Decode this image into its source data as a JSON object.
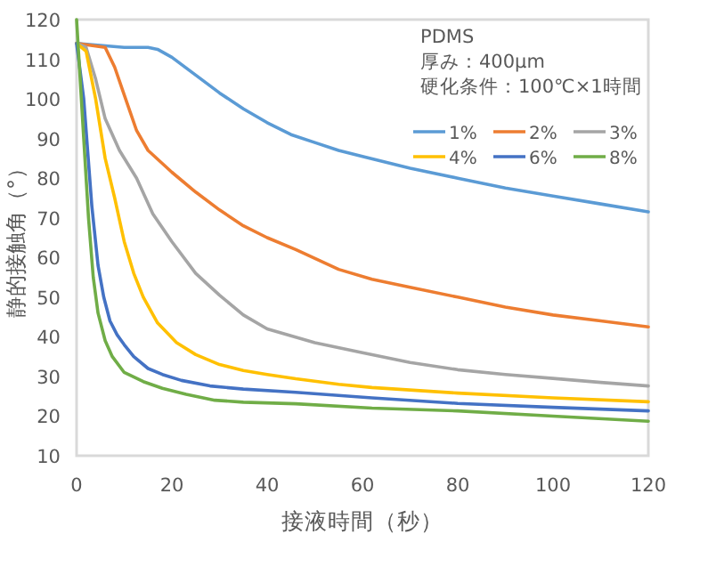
{
  "chart_data": {
    "type": "line",
    "xlabel": "接液時間（秒）",
    "ylabel": "静的接触角（°）",
    "annotations": [
      "PDMS",
      "厚み：400μm",
      "硬化条件：100℃×1時間"
    ],
    "xlim": [
      0,
      120
    ],
    "xticks": [
      0,
      20,
      40,
      60,
      80,
      100,
      120
    ],
    "ylim": [
      10,
      120
    ],
    "yticks": [
      10,
      20,
      30,
      40,
      50,
      60,
      70,
      80,
      90,
      100,
      110,
      120
    ],
    "legend": "top right",
    "grid": false,
    "marker": "none",
    "line_style": "solid",
    "series": [
      {
        "name": "1%",
        "color": "#5b9bd5",
        "x": [
          0,
          5,
          10,
          15,
          17,
          20,
          25,
          30,
          35,
          40,
          45,
          50,
          55,
          60,
          70,
          80,
          90,
          100,
          110,
          120
        ],
        "values": [
          114,
          113.5,
          113,
          113,
          112.5,
          110.5,
          106,
          101.5,
          97.5,
          94,
          91,
          89,
          87,
          85.5,
          82.5,
          80,
          77.5,
          75.5,
          73.5,
          71.5
        ]
      },
      {
        "name": "2%",
        "color": "#ed7d31",
        "x": [
          0,
          3,
          6,
          8,
          10,
          12.6,
          15,
          20,
          25,
          30,
          35,
          40,
          46,
          55,
          62,
          70,
          80,
          90,
          100,
          110,
          120
        ],
        "values": [
          114,
          113.5,
          113,
          108,
          101,
          92,
          87,
          81.5,
          76.5,
          72,
          68,
          65,
          62,
          57,
          54.5,
          52.5,
          50,
          47.5,
          45.5,
          44,
          42.5
        ]
      },
      {
        "name": "3%",
        "color": "#a5a5a5",
        "x": [
          0,
          2,
          4,
          6,
          9,
          12.6,
          16,
          20,
          25,
          30,
          35,
          40,
          50,
          60,
          70,
          80,
          90,
          100,
          110,
          120
        ],
        "values": [
          114,
          113,
          105,
          95,
          87,
          80,
          71,
          64,
          56,
          50.5,
          45.5,
          42,
          38.5,
          36,
          33.5,
          31.7,
          30.5,
          29.5,
          28.5,
          27.6
        ]
      },
      {
        "name": "4%",
        "color": "#ffc000",
        "x": [
          0,
          2,
          4,
          6,
          8,
          10,
          12,
          14,
          17,
          21,
          25,
          30,
          35,
          40,
          46,
          55,
          62,
          80,
          100,
          120
        ],
        "values": [
          114,
          112,
          100,
          85,
          75,
          64,
          56,
          50,
          43.5,
          38.5,
          35.5,
          33,
          31.5,
          30.5,
          29.4,
          28,
          27.2,
          25.8,
          24.6,
          23.6
        ]
      },
      {
        "name": "6%",
        "color": "#4472c4",
        "x": [
          0,
          1.5,
          3.2,
          4.5,
          5.7,
          7,
          8.5,
          10,
          12,
          15,
          18,
          22,
          28,
          35,
          46,
          62,
          80,
          100,
          120
        ],
        "values": [
          114,
          100,
          73,
          58,
          50,
          44,
          40.5,
          38,
          35,
          32,
          30.5,
          29,
          27.6,
          26.8,
          26,
          24.6,
          23.2,
          22.2,
          21.3
        ]
      },
      {
        "name": "8%",
        "color": "#70ad47",
        "x": [
          0,
          0.5,
          1.5,
          2.5,
          3.5,
          4.5,
          6,
          7.5,
          10,
          14,
          18,
          23,
          29,
          35,
          46,
          62,
          80,
          100,
          120
        ],
        "values": [
          120,
          110,
          90,
          70,
          55,
          46,
          39,
          35,
          31,
          28.7,
          27,
          25.5,
          24,
          23.5,
          23.1,
          22,
          21.3,
          20,
          18.7
        ]
      }
    ]
  }
}
